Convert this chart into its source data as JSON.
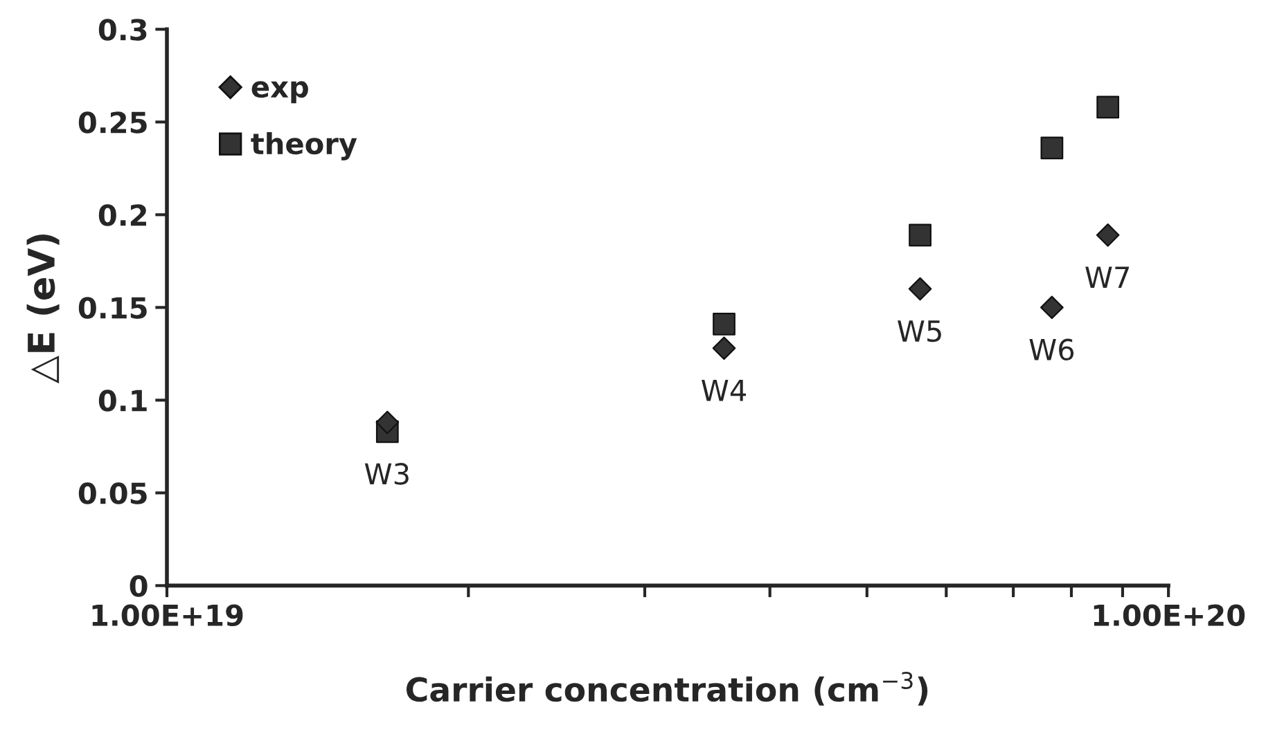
{
  "chart_data": {
    "type": "scatter",
    "xlabel": "Carrier concentration (cm$^{−3}$)",
    "ylabel": "△E (eV)",
    "x": [
      1.66e+19,
      3.6e+19,
      5.65e+19,
      7.65e+19,
      8.7e+19
    ],
    "series": [
      {
        "name": "exp",
        "color": "#333333",
        "marker": "diamond",
        "values": [
          0.088,
          0.128,
          0.16,
          0.15,
          0.189
        ]
      },
      {
        "name": "theory",
        "color": "#333333",
        "marker": "square",
        "values": [
          0.083,
          0.141,
          0.189,
          0.236,
          0.258
        ]
      }
    ],
    "log": "x",
    "xlim": [
      1e+19,
      1e+20
    ],
    "xticks": [
      {
        "value": 1e+19,
        "label": "1.00E+19"
      },
      {
        "value": 2e+19,
        "label": null
      },
      {
        "value": 3e+19,
        "label": null
      },
      {
        "value": 4e+19,
        "label": null
      },
      {
        "value": 5e+19,
        "label": null
      },
      {
        "value": 6e+19,
        "label": null
      },
      {
        "value": 7e+19,
        "label": null
      },
      {
        "value": 8e+19,
        "label": null
      },
      {
        "value": 9e+19,
        "label": null
      },
      {
        "value": 1e+20,
        "label": "1.00E+20"
      }
    ],
    "ylim": [
      0,
      0.3
    ],
    "yticks": [
      0,
      {
        "value": 0.05,
        "label": "0.05"
      },
      {
        "value": 0.1,
        "label": "0.1"
      },
      {
        "value": 0.15,
        "label": "0.15"
      },
      {
        "value": 0.2,
        "label": "0.2"
      },
      {
        "value": 0.25,
        "label": "0.25"
      },
      {
        "value": 0.3,
        "label": "0.3"
      }
    ],
    "grid": false,
    "legend": "top left",
    "annotations": [
      {
        "text": "W3",
        "x": 1.66e+19,
        "y": 0.083
      },
      {
        "text": "W4",
        "x": 3.6e+19,
        "y": 0.128
      },
      {
        "text": "W5",
        "x": 5.65e+19,
        "y": 0.16
      },
      {
        "text": "W6",
        "x": 7.65e+19,
        "y": 0.15
      },
      {
        "text": "W7",
        "x": 8.7e+19,
        "y": 0.189
      }
    ]
  }
}
